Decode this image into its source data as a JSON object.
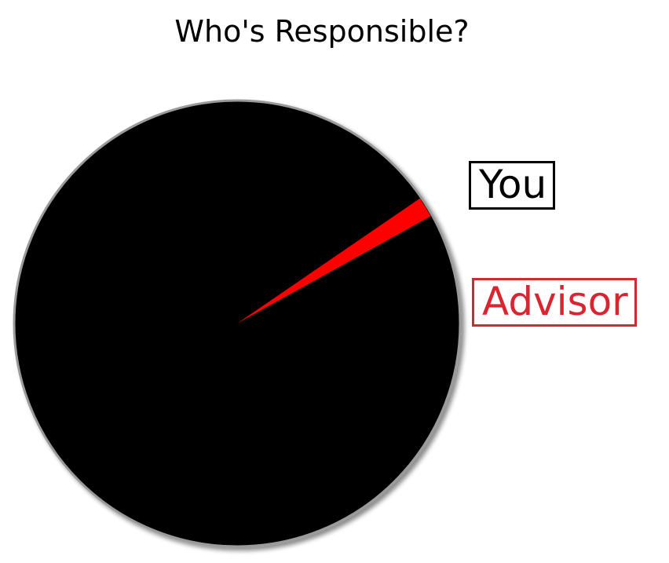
{
  "chart_data": {
    "type": "pie",
    "title": "Who's Responsible?",
    "slices": [
      {
        "label": "You",
        "value": 98.5,
        "color": "#000000"
      },
      {
        "label": "Advisor",
        "value": 1.5,
        "color": "#ff0000"
      }
    ],
    "start_angle_deg": -29,
    "legend": {
      "placement": "right",
      "entries": [
        {
          "label": "You",
          "color": "#000000"
        },
        {
          "label": "Advisor",
          "color": "#d9252f"
        }
      ]
    }
  }
}
